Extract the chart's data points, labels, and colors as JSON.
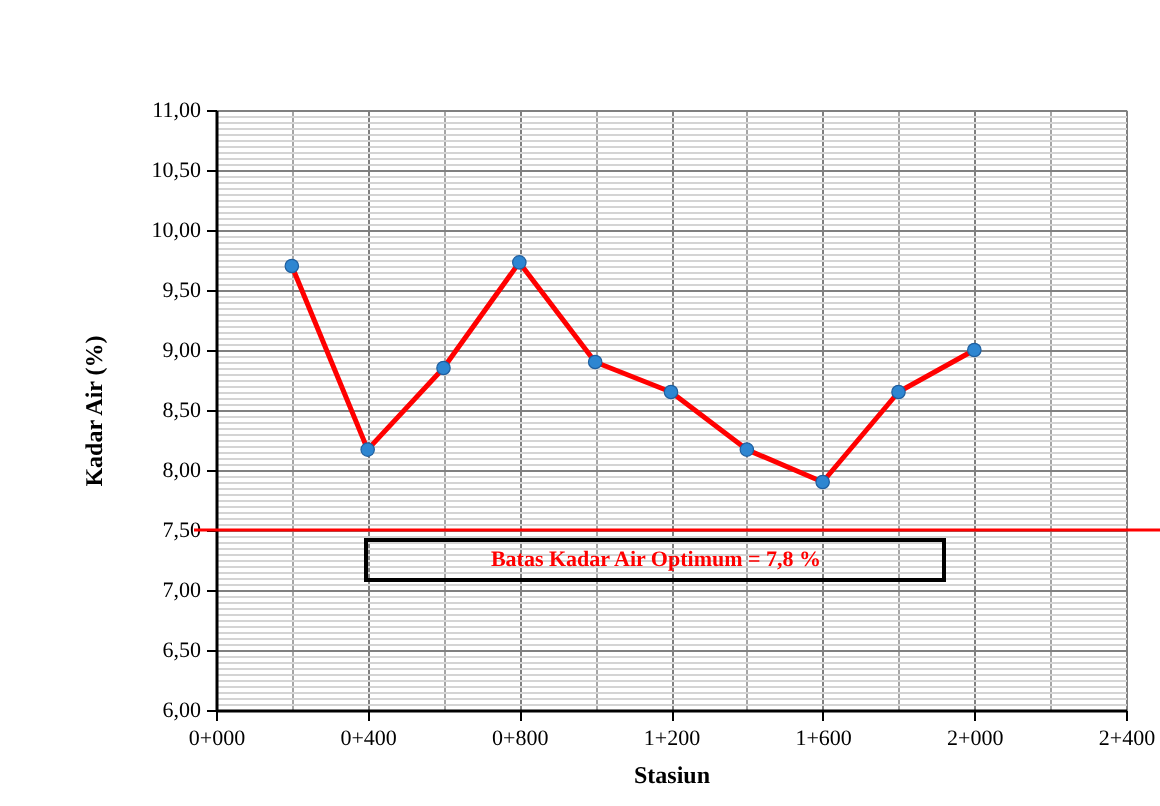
{
  "chart_data": {
    "type": "line",
    "xlabel": "Stasiun",
    "ylabel": "Kadar Air (%)",
    "categories": [
      "0+000",
      null,
      "0+400",
      null,
      "0+800",
      null,
      "1+200",
      null,
      "1+600",
      null,
      "2+000",
      null,
      "2+400"
    ],
    "series": [
      {
        "color": "#ff0000",
        "colors": [
          "#2e86d1",
          "#2e86d1",
          "#2e86d1",
          "#2e86d1",
          "#2e86d1",
          "#2e86d1",
          "#2e86d1",
          "#2e86d1",
          "#2e86d1",
          "#2e86d1",
          "#2e86d1",
          "#2e86d1",
          "#2e86d1"
        ],
        "values": [
          null,
          9.7,
          8.17,
          8.85,
          9.73,
          8.9,
          8.65,
          8.17,
          7.9,
          8.65,
          9.0,
          null,
          null
        ]
      }
    ],
    "ylim": [
      6,
      11
    ],
    "yticks": [
      {
        "value": 6,
        "label": "6,00"
      },
      {
        "value": 6.05,
        "label": null
      },
      {
        "value": 6.1,
        "label": null
      },
      {
        "value": 6.15,
        "label": null
      },
      {
        "value": 6.2,
        "label": null
      },
      {
        "value": 6.25,
        "label": null
      },
      {
        "value": 6.3,
        "label": null
      },
      {
        "value": 6.35,
        "label": null
      },
      {
        "value": 6.4,
        "label": null
      },
      {
        "value": 6.45,
        "label": null
      },
      {
        "value": 6.5,
        "label": "6,50"
      },
      {
        "value": 6.55,
        "label": null
      },
      {
        "value": 6.6,
        "label": null
      },
      {
        "value": 6.65,
        "label": null
      },
      {
        "value": 6.7,
        "label": null
      },
      {
        "value": 6.75,
        "label": null
      },
      {
        "value": 6.8,
        "label": null
      },
      {
        "value": 6.85,
        "label": null
      },
      {
        "value": 6.9,
        "label": null
      },
      {
        "value": 6.95,
        "label": null
      },
      {
        "value": 7,
        "label": "7,00"
      },
      {
        "value": 7.05,
        "label": null
      },
      {
        "value": 7.1,
        "label": null
      },
      {
        "value": 7.15,
        "label": null
      },
      {
        "value": 7.2,
        "label": null
      },
      {
        "value": 7.25,
        "label": null
      },
      {
        "value": 7.3,
        "label": null
      },
      {
        "value": 7.35,
        "label": null
      },
      {
        "value": 7.4,
        "label": null
      },
      {
        "value": 7.45,
        "label": null
      },
      {
        "value": 7.5,
        "label": "7,50"
      },
      {
        "value": 7.55,
        "label": null
      },
      {
        "value": 7.6,
        "label": null
      },
      {
        "value": 7.65,
        "label": null
      },
      {
        "value": 7.7,
        "label": null
      },
      {
        "value": 7.75,
        "label": null
      },
      {
        "value": 7.8,
        "label": null
      },
      {
        "value": 7.85,
        "label": null
      },
      {
        "value": 7.9,
        "label": null
      },
      {
        "value": 7.95,
        "label": null
      },
      {
        "value": 8,
        "label": "8,00"
      },
      {
        "value": 8.05,
        "label": null
      },
      {
        "value": 8.1,
        "label": null
      },
      {
        "value": 8.15,
        "label": null
      },
      {
        "value": 8.2,
        "label": null
      },
      {
        "value": 8.25,
        "label": null
      },
      {
        "value": 8.3,
        "label": null
      },
      {
        "value": 8.35,
        "label": null
      },
      {
        "value": 8.4,
        "label": null
      },
      {
        "value": 8.45,
        "label": null
      },
      {
        "value": 8.5,
        "label": "8,50"
      },
      {
        "value": 8.55,
        "label": null
      },
      {
        "value": 8.6,
        "label": null
      },
      {
        "value": 8.65,
        "label": null
      },
      {
        "value": 8.7,
        "label": null
      },
      {
        "value": 8.75,
        "label": null
      },
      {
        "value": 8.8,
        "label": null
      },
      {
        "value": 8.85,
        "label": null
      },
      {
        "value": 8.9,
        "label": null
      },
      {
        "value": 8.95,
        "label": null
      },
      {
        "value": 9,
        "label": "9,00"
      },
      {
        "value": 9.05,
        "label": null
      },
      {
        "value": 9.1,
        "label": null
      },
      {
        "value": 9.15,
        "label": null
      },
      {
        "value": 9.2,
        "label": null
      },
      {
        "value": 9.25,
        "label": null
      },
      {
        "value": 9.3,
        "label": null
      },
      {
        "value": 9.35,
        "label": null
      },
      {
        "value": 9.4,
        "label": null
      },
      {
        "value": 9.45,
        "label": null
      },
      {
        "value": 9.5,
        "label": "9,50"
      },
      {
        "value": 9.55,
        "label": null
      },
      {
        "value": 9.6,
        "label": null
      },
      {
        "value": 9.65,
        "label": null
      },
      {
        "value": 9.7,
        "label": null
      },
      {
        "value": 9.75,
        "label": null
      },
      {
        "value": 9.8,
        "label": null
      },
      {
        "value": 9.85,
        "label": null
      },
      {
        "value": 9.9,
        "label": null
      },
      {
        "value": 9.95,
        "label": null
      },
      {
        "value": 10,
        "label": "10,00"
      },
      {
        "value": 10.05,
        "label": null
      },
      {
        "value": 10.1,
        "label": null
      },
      {
        "value": 10.15,
        "label": null
      },
      {
        "value": 10.2,
        "label": null
      },
      {
        "value": 10.25,
        "label": null
      },
      {
        "value": 10.3,
        "label": null
      },
      {
        "value": 10.35,
        "label": null
      },
      {
        "value": 10.4,
        "label": null
      },
      {
        "value": 10.45,
        "label": null
      },
      {
        "value": 10.5,
        "label": "10,50"
      },
      {
        "value": 10.55,
        "label": null
      },
      {
        "value": 10.6,
        "label": null
      },
      {
        "value": 10.65,
        "label": null
      },
      {
        "value": 10.7,
        "label": null
      },
      {
        "value": 10.75,
        "label": null
      },
      {
        "value": 10.8,
        "label": null
      },
      {
        "value": 10.85,
        "label": null
      },
      {
        "value": 10.9,
        "label": null
      },
      {
        "value": 10.95,
        "label": null
      },
      {
        "value": 11,
        "label": "11,00"
      }
    ],
    "grid": true,
    "marker": "circle",
    "ref_lines": [
      {
        "axis": "y",
        "value": 7.5,
        "color": "#ff0000"
      }
    ],
    "annotations": [
      "Batas Kadar Air Optimum = 7,8 %"
    ]
  }
}
